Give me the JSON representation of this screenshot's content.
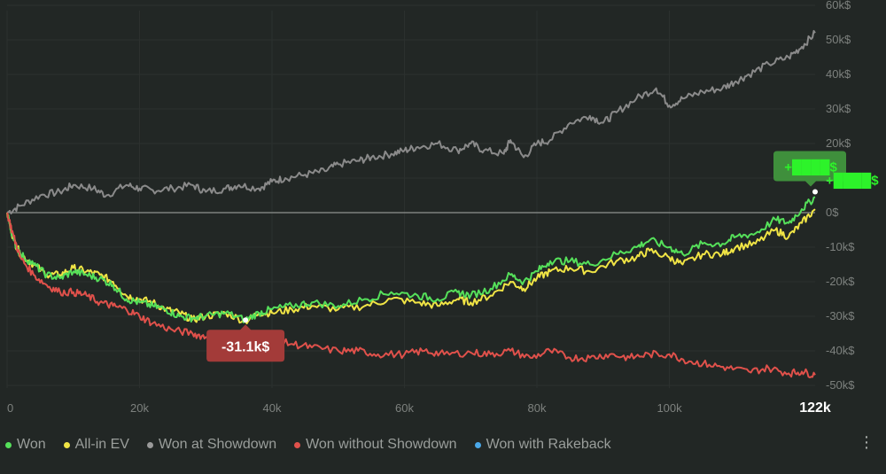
{
  "chart_data": {
    "type": "line",
    "x_ticks": [
      "0",
      "20k",
      "40k",
      "60k",
      "80k",
      "100k"
    ],
    "x_end_label": "122k",
    "xlim": [
      0,
      122000
    ],
    "y_ticks": [
      "60k$",
      "50k$",
      "40k$",
      "30k$",
      "20k$",
      "10k$",
      "0$",
      "-10k$",
      "-20k$",
      "-30k$",
      "-40k$",
      "-50k$"
    ],
    "ylim": [
      -52000,
      60000
    ],
    "series": [
      {
        "name": "Won at Showdown",
        "color": "#8a8a8a",
        "x": [
          0,
          2000,
          5000,
          8000,
          10000,
          13000,
          15000,
          18000,
          20000,
          22000,
          25000,
          28000,
          30000,
          33000,
          35000,
          38000,
          40000,
          42000,
          45000,
          48000,
          50000,
          53000,
          55000,
          58000,
          60000,
          62000,
          65000,
          68000,
          70000,
          72000,
          75000,
          76000,
          78000,
          80000,
          82000,
          85000,
          88000,
          90000,
          92000,
          95000,
          98000,
          100000,
          102000,
          105000,
          108000,
          110000,
          112000,
          115000,
          118000,
          120000,
          122000
        ],
        "values": [
          0,
          2000,
          5000,
          6000,
          8000,
          7000,
          5000,
          8000,
          7000,
          6500,
          7000,
          8000,
          6000,
          7000,
          8000,
          7000,
          9000,
          10000,
          11000,
          12000,
          14000,
          15000,
          16000,
          17000,
          18000,
          19000,
          20000,
          18000,
          20000,
          18000,
          17000,
          21000,
          16000,
          20000,
          21000,
          26000,
          28000,
          26000,
          29000,
          33000,
          36000,
          31000,
          33000,
          35000,
          36000,
          38000,
          40000,
          43000,
          45000,
          48000,
          52000
        ]
      },
      {
        "name": "All-in EV",
        "color": "#f0e445",
        "x": [
          0,
          1000,
          2000,
          4000,
          6000,
          8000,
          10000,
          12000,
          14000,
          16000,
          18000,
          20000,
          22000,
          24000,
          26000,
          28000,
          30000,
          33000,
          36000,
          38000,
          40000,
          43000,
          46000,
          50000,
          54000,
          58000,
          62000,
          65000,
          68000,
          70000,
          73000,
          76000,
          78000,
          80000,
          82000,
          85000,
          88000,
          92000,
          95000,
          97000,
          100000,
          102000,
          105000,
          108000,
          110000,
          113000,
          116000,
          118000,
          120000,
          122000
        ],
        "values": [
          0,
          -8000,
          -12000,
          -15000,
          -18000,
          -18000,
          -16000,
          -17000,
          -18000,
          -20000,
          -24000,
          -25000,
          -26000,
          -28000,
          -29000,
          -31000,
          -30000,
          -29000,
          -31500,
          -29000,
          -29000,
          -28000,
          -27000,
          -28000,
          -27000,
          -25000,
          -26000,
          -27000,
          -25000,
          -26000,
          -24000,
          -20000,
          -22000,
          -19000,
          -17000,
          -16000,
          -17000,
          -14000,
          -13000,
          -11000,
          -13000,
          -15000,
          -12000,
          -12000,
          -10000,
          -9000,
          -5000,
          -7000,
          -3000,
          1000
        ]
      },
      {
        "name": "Won",
        "color": "#55e05a",
        "x": [
          0,
          1000,
          2000,
          4000,
          6000,
          8000,
          10000,
          12000,
          14000,
          16000,
          18000,
          20000,
          22000,
          24000,
          26000,
          28000,
          30000,
          33000,
          36000,
          38000,
          40000,
          43000,
          46000,
          50000,
          54000,
          58000,
          62000,
          65000,
          68000,
          70000,
          73000,
          76000,
          78000,
          80000,
          82000,
          85000,
          88000,
          92000,
          95000,
          97000,
          100000,
          102000,
          105000,
          108000,
          110000,
          113000,
          116000,
          118000,
          120000,
          122000
        ],
        "values": [
          0,
          -8000,
          -12000,
          -15000,
          -18000,
          -19000,
          -17000,
          -18000,
          -19000,
          -21000,
          -25000,
          -26000,
          -27000,
          -28000,
          -30000,
          -30500,
          -30000,
          -29000,
          -31100,
          -29000,
          -28000,
          -27000,
          -26000,
          -27000,
          -25000,
          -23000,
          -24000,
          -25000,
          -23000,
          -24000,
          -22000,
          -18000,
          -20000,
          -17000,
          -14000,
          -14000,
          -15000,
          -12000,
          -10000,
          -8000,
          -10000,
          -12000,
          -9000,
          -9000,
          -7000,
          -6000,
          -2000,
          -3000,
          1000,
          4500
        ]
      },
      {
        "name": "Won without Showdown",
        "color": "#e0514b",
        "x": [
          0,
          1000,
          2000,
          4000,
          6000,
          8000,
          10000,
          12000,
          14000,
          16000,
          18000,
          20000,
          22000,
          25000,
          28000,
          30000,
          33000,
          36000,
          40000,
          43000,
          46000,
          50000,
          53000,
          56000,
          60000,
          63000,
          66000,
          70000,
          73000,
          76000,
          79000,
          82000,
          85000,
          88000,
          91000,
          94000,
          97000,
          100000,
          103000,
          106000,
          109000,
          112000,
          115000,
          118000,
          120000,
          122000
        ],
        "values": [
          0,
          -7000,
          -13000,
          -18000,
          -21000,
          -23000,
          -23000,
          -24000,
          -26000,
          -27000,
          -28000,
          -30000,
          -32000,
          -34000,
          -35000,
          -36000,
          -37000,
          -38000,
          -37000,
          -38000,
          -39000,
          -40000,
          -40000,
          -41000,
          -41000,
          -40000,
          -41000,
          -40500,
          -41000,
          -40000,
          -42000,
          -40000,
          -42000,
          -42000,
          -41000,
          -42000,
          -41000,
          -41000,
          -43000,
          -44000,
          -45000,
          -46000,
          -45000,
          -46500,
          -46000,
          -47000
        ]
      }
    ],
    "annotations": [
      {
        "label": "-31.1k$",
        "x": 36000,
        "y": -31100,
        "color": "#a33b39"
      },
      {
        "label": "+████$",
        "x": 122000,
        "y": 4500,
        "color": "#3f8f3c",
        "text_color": "#2df32a"
      },
      {
        "label": "+████$",
        "x": 122000,
        "y": 4500,
        "color": "#2df32a"
      }
    ],
    "grid": true,
    "legend_position": "bottom-left"
  },
  "legend": [
    {
      "label": "Won",
      "color": "#55e05a"
    },
    {
      "label": "All-in EV",
      "color": "#f0e445"
    },
    {
      "label": "Won at Showdown",
      "color": "#9a9a9a"
    },
    {
      "label": "Won without Showdown",
      "color": "#e0514b"
    },
    {
      "label": "Won with Rakeback",
      "color": "#4aa8e8"
    }
  ]
}
